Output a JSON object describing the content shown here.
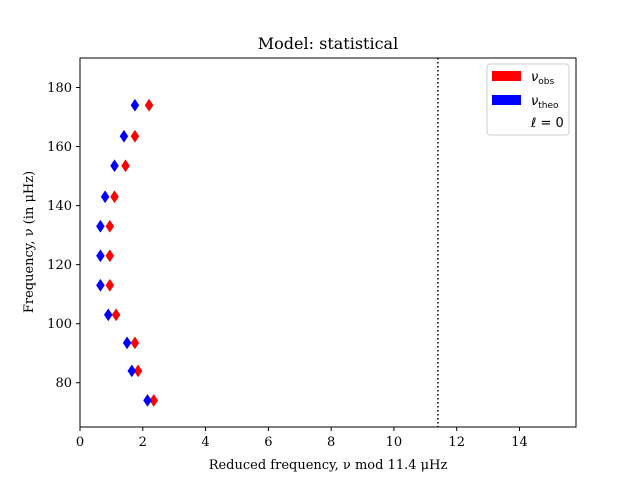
{
  "chart_data": {
    "type": "scatter",
    "title": "Model: statistical",
    "xlabel": "Reduced frequency, ν mod 11.4 μHz",
    "ylabel": "Frequency, ν (in μHz)",
    "xlim": [
      0,
      15.8
    ],
    "ylim": [
      65,
      190
    ],
    "xticks": [
      0,
      2,
      4,
      6,
      8,
      10,
      12,
      14
    ],
    "yticks": [
      80,
      100,
      120,
      140,
      160,
      180
    ],
    "grid": false,
    "legend_position": "top-right",
    "vline": {
      "x": 11.4,
      "style": "dotted",
      "color": "#000000"
    },
    "series": [
      {
        "name": "ν_obs",
        "label_main": "ν",
        "label_sub": "obs",
        "color": "#ff0000",
        "marker": "thin_diamond",
        "x": [
          2.35,
          1.85,
          1.75,
          1.15,
          0.95,
          0.95,
          0.95,
          1.1,
          1.45,
          1.75,
          2.2
        ],
        "y": [
          74,
          84,
          93.5,
          103,
          113,
          123,
          133,
          143,
          153.5,
          163.5,
          174
        ]
      },
      {
        "name": "ν_theo",
        "label_main": "ν",
        "label_sub": "theo",
        "color": "#0000ff",
        "marker": "thin_diamond",
        "x": [
          2.15,
          1.65,
          1.5,
          0.9,
          0.65,
          0.65,
          0.65,
          0.8,
          1.1,
          1.4,
          1.75
        ],
        "y": [
          74,
          84,
          93.5,
          103,
          113,
          123,
          133,
          143,
          153.5,
          163.5,
          174
        ]
      }
    ],
    "legend_extra": "ℓ = 0"
  }
}
